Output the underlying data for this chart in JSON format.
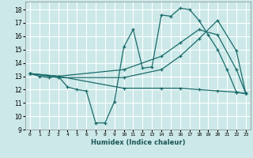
{
  "xlabel": "Humidex (Indice chaleur)",
  "bg_color": "#cce8e8",
  "line_color": "#1a6b6b",
  "grid_color": "#ffffff",
  "xlim": [
    -0.5,
    23.5
  ],
  "ylim": [
    9,
    18.6
  ],
  "yticks": [
    9,
    10,
    11,
    12,
    13,
    14,
    15,
    16,
    17,
    18
  ],
  "xticks": [
    0,
    1,
    2,
    3,
    4,
    5,
    6,
    7,
    8,
    9,
    10,
    11,
    12,
    13,
    14,
    15,
    16,
    17,
    18,
    19,
    20,
    21,
    22,
    23
  ],
  "lines": [
    {
      "x": [
        0,
        1,
        2,
        3,
        4,
        5,
        6,
        7,
        8,
        9,
        10,
        11,
        12,
        13,
        14,
        15,
        16,
        17,
        18,
        19,
        20,
        21,
        22,
        23
      ],
      "y": [
        13.2,
        13.0,
        12.9,
        13.0,
        12.2,
        12.0,
        11.9,
        9.5,
        9.5,
        11.1,
        15.2,
        16.5,
        13.6,
        13.7,
        17.6,
        17.5,
        18.1,
        18.0,
        17.2,
        16.1,
        15.0,
        13.5,
        11.8,
        11.7
      ]
    },
    {
      "x": [
        0,
        3,
        10,
        14,
        16,
        18,
        20,
        22,
        23
      ],
      "y": [
        13.2,
        13.0,
        13.5,
        14.5,
        15.5,
        16.5,
        16.1,
        13.5,
        11.7
      ]
    },
    {
      "x": [
        0,
        3,
        10,
        14,
        16,
        18,
        20,
        22,
        23
      ],
      "y": [
        13.2,
        12.9,
        12.9,
        13.5,
        14.5,
        15.8,
        17.2,
        14.9,
        11.7
      ]
    },
    {
      "x": [
        0,
        3,
        10,
        14,
        16,
        18,
        20,
        22,
        23
      ],
      "y": [
        13.2,
        13.0,
        12.1,
        12.1,
        12.1,
        12.0,
        11.9,
        11.8,
        11.7
      ]
    }
  ]
}
